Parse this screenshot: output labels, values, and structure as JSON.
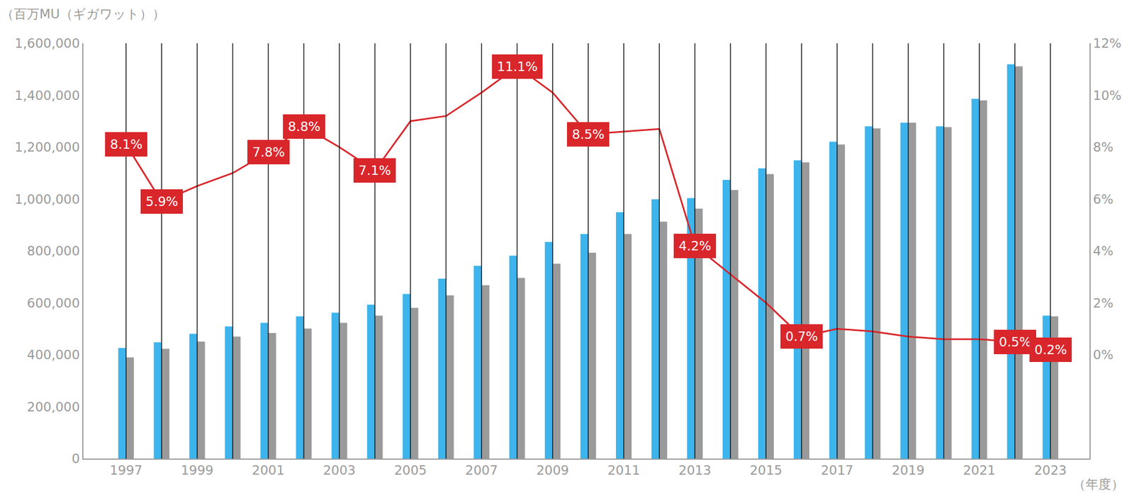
{
  "chart_data": {
    "type": "bar",
    "y_label": "（百万MU（ギガワット））",
    "x_label": "（年度）",
    "x": [
      1997,
      1998,
      1999,
      2000,
      2001,
      2002,
      2003,
      2004,
      2005,
      2006,
      2007,
      2008,
      2009,
      2010,
      2011,
      2012,
      2013,
      2014,
      2015,
      2016,
      2017,
      2018,
      2019,
      2020,
      2021,
      2022,
      2023
    ],
    "xlim": [
      1995.8,
      2024.1
    ],
    "xticks": [
      1997,
      1999,
      2001,
      2003,
      2005,
      2007,
      2009,
      2011,
      2013,
      2015,
      2017,
      2019,
      2021,
      2023
    ],
    "ylim": [
      0,
      1600000
    ],
    "yticks": [
      0,
      {
        "value": 200000,
        "label": "200,000"
      },
      {
        "value": 400000,
        "label": "400,000"
      },
      {
        "value": 600000,
        "label": "600,000"
      },
      {
        "value": 800000,
        "label": "800,000"
      },
      {
        "value": 1000000,
        "label": "1,000,000"
      },
      {
        "value": 1200000,
        "label": "1,200,000"
      },
      {
        "value": 1400000,
        "label": "1,400,000"
      },
      {
        "value": 1600000,
        "label": "1,600,000"
      }
    ],
    "y2lim": [
      -4,
      12
    ],
    "y2ticks": [
      {
        "value": 0,
        "label": "0%"
      },
      {
        "value": 2,
        "label": "2%"
      },
      {
        "value": 4,
        "label": "4%"
      },
      {
        "value": 6,
        "label": "6%"
      },
      {
        "value": 8,
        "label": "8%"
      },
      {
        "value": 10,
        "label": "10%"
      },
      {
        "value": 12,
        "label": "12%"
      }
    ],
    "grid": true,
    "series": [
      {
        "type": "bar",
        "color": "#3db4ec",
        "values": [
          426000,
          448000,
          481000,
          509000,
          523000,
          548000,
          562000,
          593000,
          634000,
          693000,
          743000,
          782000,
          835000,
          865000,
          949000,
          999000,
          1004000,
          1074000,
          1118000,
          1149000,
          1221000,
          1280000,
          1294000,
          1280000,
          1386000,
          1519000,
          551000
        ]
      },
      {
        "type": "bar",
        "color": "#9a9a9a",
        "values": [
          390000,
          423000,
          451000,
          470000,
          484000,
          501000,
          523000,
          551000,
          581000,
          629000,
          668000,
          696000,
          751000,
          793000,
          865000,
          913000,
          963000,
          1035000,
          1096000,
          1141000,
          1210000,
          1272000,
          1294000,
          1277000,
          1380000,
          1511000,
          548000
        ]
      },
      {
        "type": "line",
        "axis": "y2",
        "color": "#d9262b",
        "data_labels": true,
        "values": [
          8.1,
          5.9,
          6.5,
          7.0,
          7.8,
          8.8,
          8.0,
          7.1,
          9.0,
          9.2,
          10.1,
          11.1,
          10.1,
          8.5,
          8.6,
          8.7,
          4.2,
          3.1,
          2.0,
          0.7,
          1.0,
          0.9,
          0.7,
          0.6,
          0.6,
          0.5,
          0.2
        ],
        "value_labels": [
          "8.1%",
          "5.9%",
          null,
          null,
          "7.8%",
          "8.8%",
          null,
          "7.1%",
          null,
          null,
          null,
          "11.1%",
          null,
          "8.5%",
          null,
          null,
          "4.2%",
          null,
          null,
          "0.7%",
          null,
          null,
          null,
          null,
          null,
          "0.5%",
          "0.2%"
        ]
      }
    ]
  }
}
